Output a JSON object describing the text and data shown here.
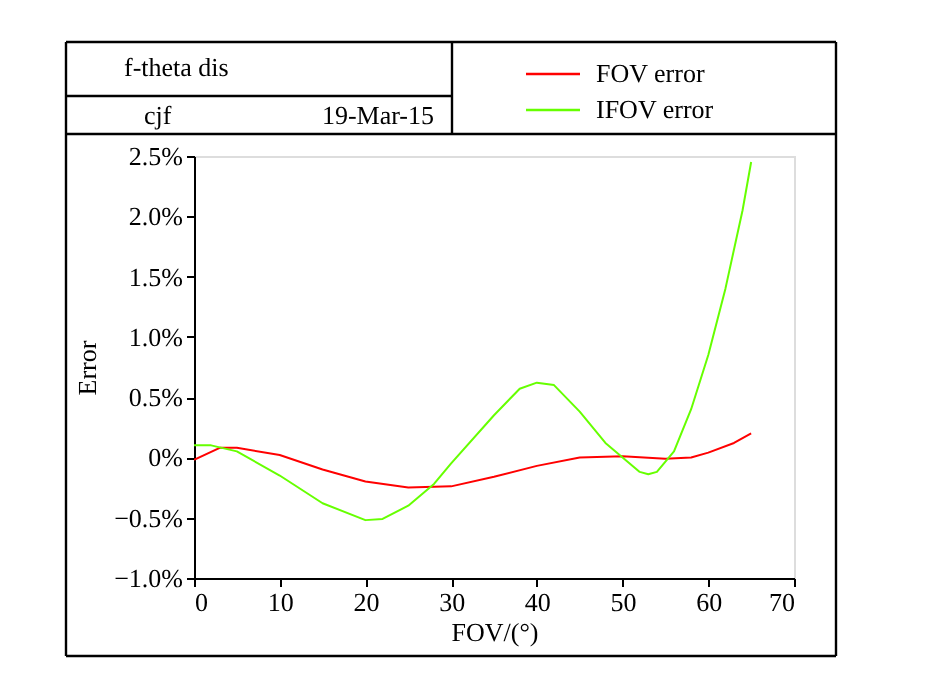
{
  "chart_data": {
    "type": "line",
    "title": "f-theta dis",
    "annotations": [
      "cjf",
      "19-Mar-15"
    ],
    "xlabel": "FOV/(°)",
    "ylabel": "Error",
    "xlim": [
      0,
      70
    ],
    "xticks": [
      0,
      10,
      20,
      30,
      40,
      50,
      60,
      70
    ],
    "ylim": [
      -1.0,
      2.5
    ],
    "yticks": [
      {
        "value": -1.0,
        "label": "−1.0%"
      },
      {
        "value": -0.5,
        "label": "−0.5%"
      },
      {
        "value": 0,
        "label": "0%"
      },
      {
        "value": 0.5,
        "label": "0.5%"
      },
      {
        "value": 1.0,
        "label": "1.0%"
      },
      {
        "value": 1.5,
        "label": "1.5%"
      },
      {
        "value": 2.0,
        "label": "2.0%"
      },
      {
        "value": 2.5,
        "label": "2.5%"
      }
    ],
    "grid": false,
    "legend": "top right",
    "marker": "none",
    "line_style": "solid",
    "series": [
      {
        "name": "FOV error",
        "color": "#ff0000",
        "x": [
          0,
          3,
          5,
          10,
          15,
          20,
          25,
          30,
          35,
          40,
          45,
          50,
          55,
          58,
          60,
          63,
          65
        ],
        "values": [
          -0.02,
          0.08,
          0.08,
          0.02,
          -0.1,
          -0.2,
          -0.25,
          -0.24,
          -0.16,
          -0.07,
          0.0,
          0.01,
          -0.01,
          0.0,
          0.04,
          0.12,
          0.2
        ]
      },
      {
        "name": "IFOV error",
        "color": "#66ff00",
        "x": [
          0,
          2,
          5,
          10,
          15,
          20,
          22,
          25,
          28,
          30,
          35,
          38,
          40,
          42,
          45,
          48,
          50,
          52,
          53,
          54,
          56,
          58,
          60,
          62,
          64,
          65
        ],
        "values": [
          0.1,
          0.1,
          0.05,
          -0.15,
          -0.38,
          -0.52,
          -0.51,
          -0.4,
          -0.22,
          -0.05,
          0.35,
          0.57,
          0.62,
          0.6,
          0.38,
          0.12,
          0.0,
          -0.12,
          -0.14,
          -0.12,
          0.05,
          0.4,
          0.85,
          1.4,
          2.05,
          2.45
        ]
      }
    ]
  }
}
